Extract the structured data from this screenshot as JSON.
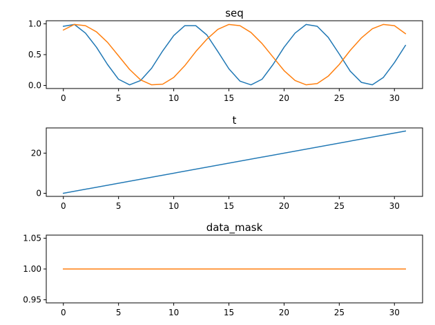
{
  "chart_data": [
    {
      "type": "line",
      "title": "seq",
      "xlim": [
        -1.55,
        32.55
      ],
      "ylim": [
        -0.05,
        1.05
      ],
      "xticks": [
        0,
        5,
        10,
        15,
        20,
        25,
        30
      ],
      "xtick_labels": [
        "0",
        "5",
        "10",
        "15",
        "20",
        "25",
        "30"
      ],
      "yticks": [
        0.0,
        0.5,
        1.0
      ],
      "ytick_labels": [
        "0.0",
        "0.5",
        "1.0"
      ],
      "series": [
        {
          "color": "#1f77b4",
          "x": [
            0,
            1,
            2,
            3,
            4,
            5,
            6,
            7,
            8,
            9,
            10,
            11,
            12,
            13,
            14,
            15,
            16,
            17,
            18,
            19,
            20,
            21,
            22,
            23,
            24,
            25,
            26,
            27,
            28,
            29,
            30,
            31
          ],
          "y": [
            0.96,
            0.99,
            0.85,
            0.62,
            0.34,
            0.1,
            0.01,
            0.08,
            0.28,
            0.56,
            0.81,
            0.97,
            0.97,
            0.82,
            0.55,
            0.27,
            0.07,
            0.01,
            0.1,
            0.34,
            0.62,
            0.85,
            0.99,
            0.96,
            0.78,
            0.51,
            0.23,
            0.05,
            0.01,
            0.13,
            0.37,
            0.65
          ]
        },
        {
          "color": "#ff7f0e",
          "x": [
            0,
            1,
            2,
            3,
            4,
            5,
            6,
            7,
            8,
            9,
            10,
            11,
            12,
            13,
            14,
            15,
            16,
            17,
            18,
            19,
            20,
            21,
            22,
            23,
            24,
            25,
            26,
            27,
            28,
            29,
            30,
            31
          ],
          "y": [
            0.9,
            0.99,
            0.97,
            0.87,
            0.7,
            0.48,
            0.26,
            0.09,
            0.01,
            0.02,
            0.13,
            0.32,
            0.55,
            0.75,
            0.91,
            0.99,
            0.97,
            0.86,
            0.68,
            0.46,
            0.24,
            0.08,
            0.01,
            0.03,
            0.15,
            0.34,
            0.57,
            0.77,
            0.92,
            0.99,
            0.97,
            0.84
          ]
        }
      ]
    },
    {
      "type": "line",
      "title": "t",
      "xlim": [
        -1.55,
        32.55
      ],
      "ylim": [
        -1.55,
        32.55
      ],
      "xticks": [
        0,
        5,
        10,
        15,
        20,
        25,
        30
      ],
      "xtick_labels": [
        "0",
        "5",
        "10",
        "15",
        "20",
        "25",
        "30"
      ],
      "yticks": [
        0,
        20
      ],
      "ytick_labels": [
        "0",
        "20"
      ],
      "series": [
        {
          "color": "#1f77b4",
          "x": [
            0,
            31
          ],
          "y": [
            0,
            31
          ]
        }
      ]
    },
    {
      "type": "line",
      "title": "data_mask",
      "xlim": [
        -1.55,
        32.55
      ],
      "ylim": [
        0.945,
        1.055
      ],
      "xticks": [
        0,
        5,
        10,
        15,
        20,
        25,
        30
      ],
      "xtick_labels": [
        "0",
        "5",
        "10",
        "15",
        "20",
        "25",
        "30"
      ],
      "yticks": [
        0.95,
        1.0,
        1.05
      ],
      "ytick_labels": [
        "0.95",
        "1.00",
        "1.05"
      ],
      "series": [
        {
          "color": "#ff7f0e",
          "x": [
            0,
            31
          ],
          "y": [
            1.0,
            1.0
          ]
        }
      ]
    }
  ]
}
